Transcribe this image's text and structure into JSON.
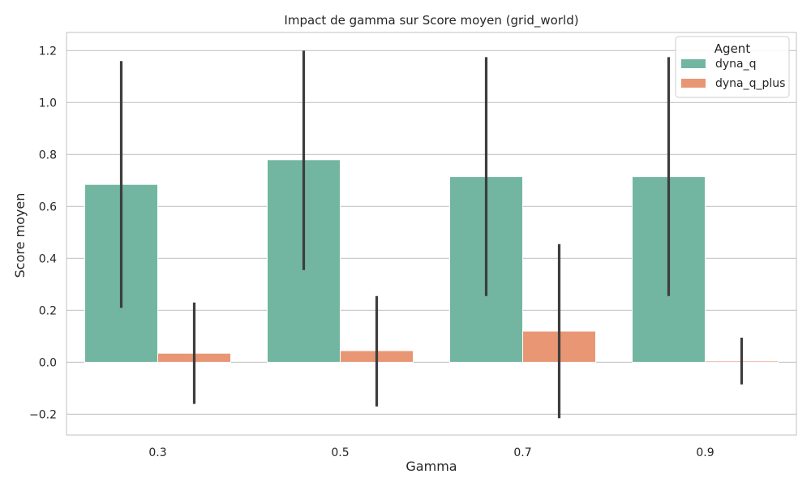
{
  "chart_data": {
    "type": "bar",
    "title": "Impact de gamma sur Score moyen (grid_world)",
    "xlabel": "Gamma",
    "ylabel": "Score moyen",
    "categories": [
      "0.3",
      "0.5",
      "0.7",
      "0.9"
    ],
    "ylim": [
      -0.28,
      1.27
    ],
    "yticks": [
      -0.2,
      0.0,
      0.2,
      0.4,
      0.6,
      0.8,
      1.0,
      1.2
    ],
    "ytick_labels": [
      "−0.2",
      "0.0",
      "0.2",
      "0.4",
      "0.6",
      "0.8",
      "1.0",
      "1.2"
    ],
    "grid": true,
    "legend": {
      "title": "Agent",
      "position": "top-right"
    },
    "series": [
      {
        "name": "dyna_q",
        "color": "#72b6a1",
        "values": [
          0.685,
          0.78,
          0.715,
          0.715
        ],
        "err_low": [
          0.21,
          0.355,
          0.255,
          0.255
        ],
        "err_high": [
          1.16,
          1.2,
          1.175,
          1.175
        ]
      },
      {
        "name": "dyna_q_plus",
        "color": "#e99675",
        "values": [
          0.035,
          0.045,
          0.12,
          0.005
        ],
        "err_low": [
          -0.16,
          -0.17,
          -0.215,
          -0.085
        ],
        "err_high": [
          0.23,
          0.255,
          0.455,
          0.095
        ]
      }
    ]
  }
}
